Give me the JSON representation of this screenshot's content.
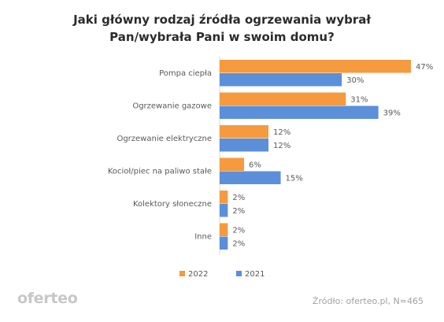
{
  "title": "Jaki główny rodzaj źródła ogrzewania wybrał Pan/wybrała Pani w swoim domu?",
  "source": "Źródło: oferteo.pl, N=465",
  "brand": "oferteo",
  "colors": {
    "series_2022": "#F59A3E",
    "series_2021": "#5B8FD9",
    "axis": "#d9d9d9",
    "label": "#595959"
  },
  "chart_data": {
    "type": "bar",
    "orientation": "horizontal",
    "categories": [
      "Pompa ciepła",
      "Ogrzewanie gazowe",
      "Ogrzewanie elektryczne",
      "Kocioł/piec na paliwo stałe",
      "Kolektory słoneczne",
      "Inne"
    ],
    "series": [
      {
        "name": "2022",
        "values": [
          47,
          31,
          12,
          6,
          2,
          2
        ],
        "labels": [
          "47%",
          "31%",
          "12%",
          "6%",
          "2%",
          "2%"
        ]
      },
      {
        "name": "2021",
        "values": [
          30,
          39,
          12,
          15,
          2,
          2
        ],
        "labels": [
          "30%",
          "39%",
          "12%",
          "15%",
          "2%",
          "2%"
        ]
      }
    ],
    "xlim": [
      0,
      47
    ],
    "grid": false,
    "legend": "bottom"
  }
}
